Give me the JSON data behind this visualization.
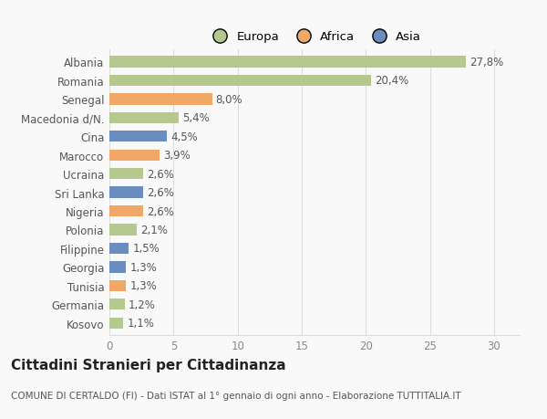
{
  "countries": [
    "Albania",
    "Romania",
    "Senegal",
    "Macedonia d/N.",
    "Cina",
    "Marocco",
    "Ucraina",
    "Sri Lanka",
    "Nigeria",
    "Polonia",
    "Filippine",
    "Georgia",
    "Tunisia",
    "Germania",
    "Kosovo"
  ],
  "values": [
    27.8,
    20.4,
    8.0,
    5.4,
    4.5,
    3.9,
    2.6,
    2.6,
    2.6,
    2.1,
    1.5,
    1.3,
    1.3,
    1.2,
    1.1
  ],
  "labels": [
    "27,8%",
    "20,4%",
    "8,0%",
    "5,4%",
    "4,5%",
    "3,9%",
    "2,6%",
    "2,6%",
    "2,6%",
    "2,1%",
    "1,5%",
    "1,3%",
    "1,3%",
    "1,2%",
    "1,1%"
  ],
  "continents": [
    "Europa",
    "Europa",
    "Africa",
    "Europa",
    "Asia",
    "Africa",
    "Europa",
    "Asia",
    "Africa",
    "Europa",
    "Asia",
    "Asia",
    "Africa",
    "Europa",
    "Europa"
  ],
  "continent_colors": {
    "Europa": "#b5c98e",
    "Africa": "#f0a868",
    "Asia": "#6b8cbf"
  },
  "legend_entries": [
    "Europa",
    "Africa",
    "Asia"
  ],
  "legend_colors": [
    "#b5c98e",
    "#f0a868",
    "#6b8cbf"
  ],
  "xlim": [
    0,
    32
  ],
  "xticks": [
    0,
    5,
    10,
    15,
    20,
    25,
    30
  ],
  "background_color": "#f9f9f9",
  "grid_color": "#dddddd",
  "title": "Cittadini Stranieri per Cittadinanza",
  "subtitle": "COMUNE DI CERTALDO (FI) - Dati ISTAT al 1° gennaio di ogni anno - Elaborazione TUTTITALIA.IT",
  "bar_height": 0.6,
  "label_fontsize": 8.5,
  "tick_fontsize": 8.5,
  "title_fontsize": 11,
  "subtitle_fontsize": 7.5
}
